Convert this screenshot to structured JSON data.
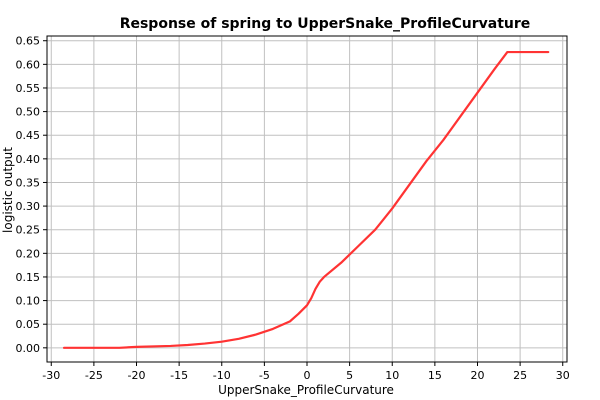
{
  "chart_data": {
    "type": "line",
    "title": "Response of spring to UpperSnake_ProfileCurvature",
    "xlabel": "UpperSnake_ProfileCurvature",
    "ylabel": "logistic output",
    "xlim": [
      -30.5,
      30.5
    ],
    "ylim": [
      -0.03,
      0.66
    ],
    "x_ticks": [
      -30,
      -25,
      -20,
      -15,
      -10,
      -5,
      0,
      5,
      10,
      15,
      20,
      25,
      30
    ],
    "y_ticks": [
      0.0,
      0.05,
      0.1,
      0.15,
      0.2,
      0.25,
      0.3,
      0.35,
      0.4,
      0.45,
      0.5,
      0.55,
      0.6,
      0.65
    ],
    "y_tick_labels": [
      "0.00",
      "0.05",
      "0.10",
      "0.15",
      "0.20",
      "0.25",
      "0.30",
      "0.35",
      "0.40",
      "0.45",
      "0.50",
      "0.55",
      "0.60",
      "0.65"
    ],
    "grid": true,
    "series": [
      {
        "color": "#ff3333",
        "x": [
          -28.5,
          -22,
          -20,
          -16,
          -14,
          -12,
          -10,
          -8,
          -6,
          -4,
          -2,
          -1,
          0,
          0.5,
          1,
          1.5,
          2,
          4,
          6,
          8,
          10,
          12,
          14,
          16,
          18,
          20,
          22,
          23.5,
          28.3
        ],
        "y": [
          0.0,
          0.0,
          0.002,
          0.004,
          0.006,
          0.009,
          0.013,
          0.019,
          0.028,
          0.04,
          0.056,
          0.072,
          0.09,
          0.105,
          0.125,
          0.14,
          0.15,
          0.18,
          0.215,
          0.25,
          0.295,
          0.345,
          0.395,
          0.44,
          0.49,
          0.54,
          0.59,
          0.626,
          0.626
        ]
      }
    ]
  }
}
